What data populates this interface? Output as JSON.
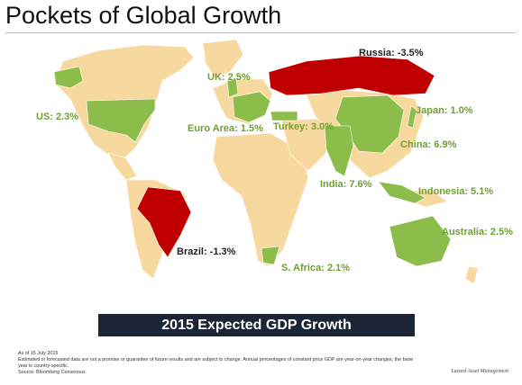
{
  "header": {
    "title": "Pockets of Global Growth"
  },
  "colors": {
    "growth": "#8cbd4a",
    "decline": "#c00000",
    "land": "#f7d9a0",
    "banner": "#1c2535"
  },
  "labels": {
    "us": "US: 2.3%",
    "uk": "UK: 2.5%",
    "euro": "Euro Area: 1.5%",
    "turkey": "Turkey: 3.0%",
    "russia": "Russia: -3.5%",
    "japan": "Japan: 1.0%",
    "china": "China: 6.9%",
    "india": "India: 7.6%",
    "indonesia": "Indonesia: 5.1%",
    "australia": "Australia: 2.5%",
    "brazil": "Brazil: -1.3%",
    "safrica": "S. Africa: 2.1%"
  },
  "banner": "2015 Expected GDP Growth",
  "footnotes": {
    "date": "As of 15 July 2015",
    "note1": "Estimated or forecasted data are not a promise or guarantee of future results and are subject to change. Annual percentages of constant price GDP are year-on-year changes; the base",
    "note2": "year is country-specific.",
    "source": "Source: Bloomberg Consensus"
  },
  "brand": "Lazard Asset Management"
}
